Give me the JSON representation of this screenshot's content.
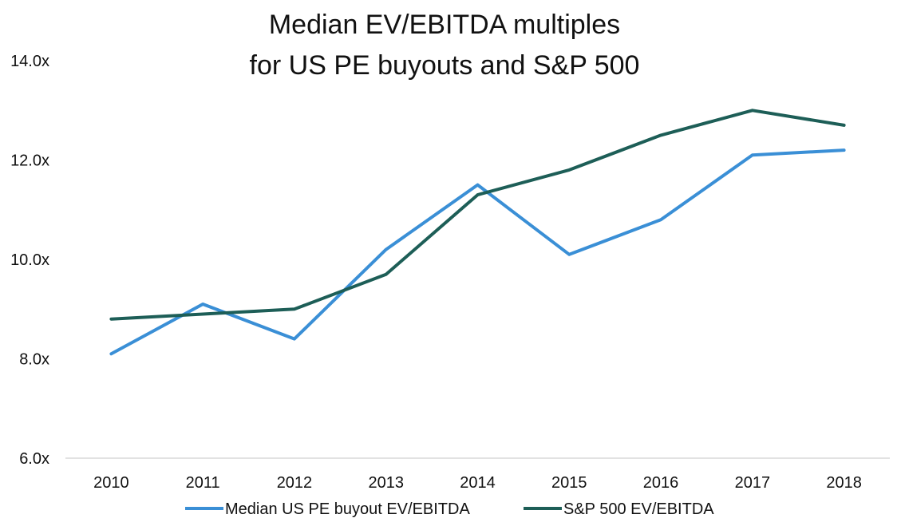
{
  "chart_data": {
    "type": "line",
    "title": [
      "Median EV/EBITDA multiples",
      "for US PE buyouts and S&P 500"
    ],
    "x": [
      "2010",
      "2011",
      "2012",
      "2013",
      "2014",
      "2015",
      "2016",
      "2017",
      "2018"
    ],
    "series": [
      {
        "name": "Median US PE buyout EV/EBITDA",
        "color": "#3a8fd6",
        "values": [
          8.1,
          9.1,
          8.4,
          10.2,
          11.5,
          10.1,
          10.8,
          12.1,
          12.2
        ]
      },
      {
        "name": "S&P 500 EV/EBITDA",
        "color": "#1d5e57",
        "values": [
          8.8,
          8.9,
          9.0,
          9.7,
          11.3,
          11.8,
          12.5,
          13.0,
          12.7
        ]
      }
    ],
    "y_ticks": [
      "6.0x",
      "8.0x",
      "10.0x",
      "12.0x",
      "14.0x"
    ],
    "y_tick_values": [
      6,
      8,
      10,
      12,
      14
    ],
    "ylim": [
      6,
      14
    ],
    "grid": false,
    "legend": "bottom"
  }
}
